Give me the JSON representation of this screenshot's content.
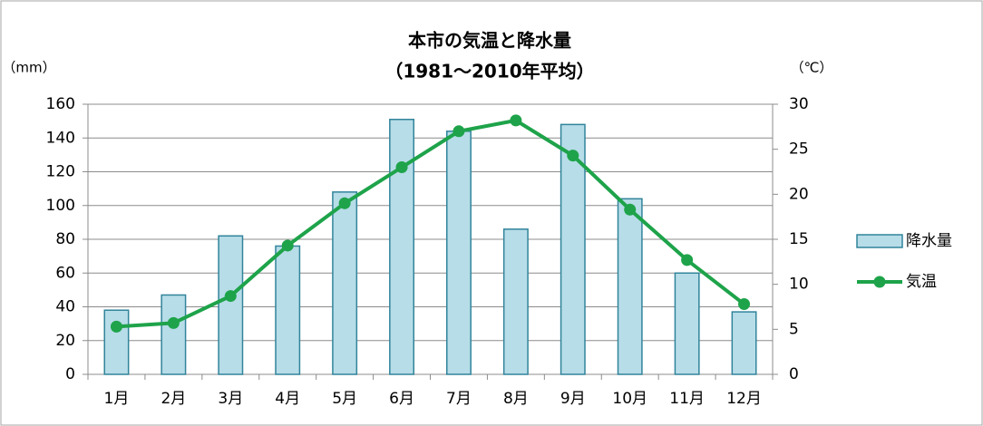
{
  "chart_data": {
    "type": "bar_line",
    "title": "本市の気温と降水量",
    "subtitle": "（1981～2010年平均）",
    "y_label": "（mm）",
    "y2_label": "（℃）",
    "categories": [
      "1月",
      "2月",
      "3月",
      "4月",
      "5月",
      "6月",
      "7月",
      "8月",
      "9月",
      "10月",
      "11月",
      "12月"
    ],
    "series": [
      {
        "name": "降水量",
        "type": "bar",
        "color": "#b7dde8",
        "edge_color": "#31849b",
        "values": [
          38,
          47,
          82,
          76,
          108,
          151,
          144,
          86,
          148,
          104,
          60,
          37
        ]
      },
      {
        "name": "気温",
        "type": "line",
        "axis": "y2",
        "color": "#1ea34a",
        "values": [
          5.3,
          5.7,
          8.7,
          14.3,
          19.0,
          23.0,
          27.0,
          28.2,
          24.3,
          18.3,
          12.7,
          7.8
        ]
      }
    ],
    "ylim": [
      0,
      160
    ],
    "yticks": [
      0,
      20,
      40,
      60,
      80,
      100,
      120,
      140,
      160
    ],
    "y2lim": [
      0,
      30
    ],
    "y2ticks": [
      0,
      5,
      10,
      15,
      20,
      25,
      30
    ],
    "grid": true,
    "legend": "right"
  }
}
